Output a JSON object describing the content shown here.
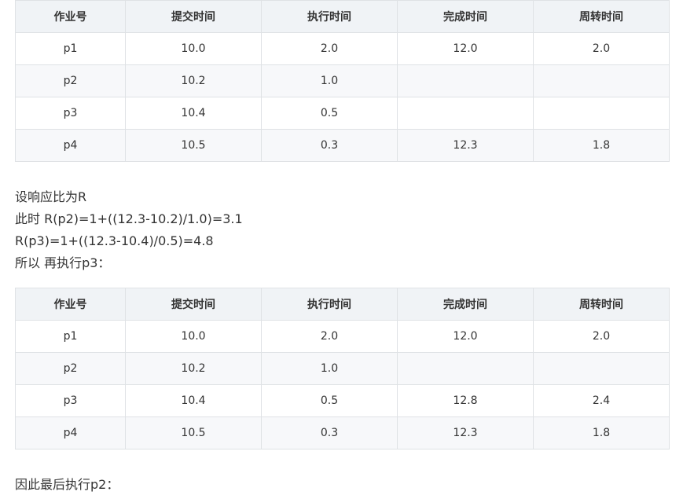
{
  "table1": {
    "headers": [
      "作业号",
      "提交时间",
      "执行时间",
      "完成时间",
      "周转时间"
    ],
    "rows": [
      [
        "p1",
        "10.0",
        "2.0",
        "12.0",
        "2.0"
      ],
      [
        "p2",
        "10.2",
        "1.0",
        "",
        ""
      ],
      [
        "p3",
        "10.4",
        "0.5",
        "",
        ""
      ],
      [
        "p4",
        "10.5",
        "0.3",
        "12.3",
        "1.8"
      ]
    ]
  },
  "text_block": {
    "lines": [
      "设响应比为R",
      "此时 R(p2)=1+((12.3-10.2)/1.0)=3.1",
      "R(p3)=1+((12.3-10.4)/0.5)=4.8",
      "所以 再执行p3："
    ]
  },
  "table2": {
    "headers": [
      "作业号",
      "提交时间",
      "执行时间",
      "完成时间",
      "周转时间"
    ],
    "rows": [
      [
        "p1",
        "10.0",
        "2.0",
        "12.0",
        "2.0"
      ],
      [
        "p2",
        "10.2",
        "1.0",
        "",
        ""
      ],
      [
        "p3",
        "10.4",
        "0.5",
        "12.8",
        "2.4"
      ],
      [
        "p4",
        "10.5",
        "0.3",
        "12.3",
        "1.8"
      ]
    ]
  },
  "footer_text": "因此最后执行p2："
}
